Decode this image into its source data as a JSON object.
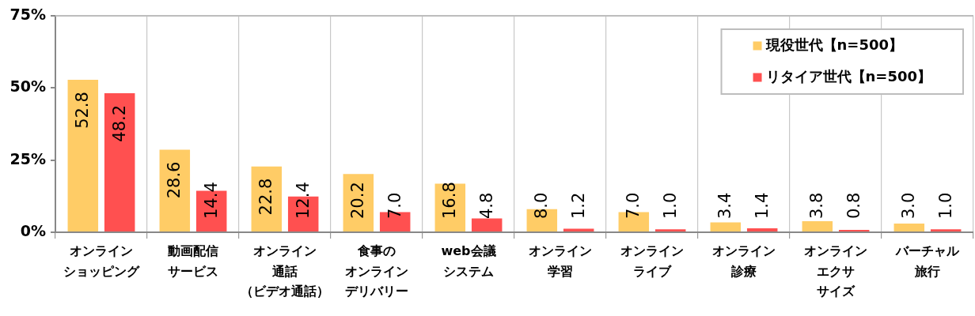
{
  "chart_data": {
    "type": "bar",
    "categories": [
      "オンラインショッピング",
      "動画配信サービス",
      "オンライン通話（ビデオ通話）",
      "食事のオンラインデリバリー",
      "web会議システム",
      "オンライン学習",
      "オンラインライブ",
      "オンライン診療",
      "オンラインエクササイズ",
      "バーチャル旅行"
    ],
    "series": [
      {
        "name": "現役世代【n=500】",
        "color": "#ffcc66",
        "values": [
          52.8,
          28.6,
          22.8,
          20.2,
          16.8,
          8.0,
          7.0,
          3.4,
          3.8,
          3.0
        ],
        "value_labels": [
          "52.8",
          "28.6",
          "22.8",
          "20.2",
          "16.8",
          "8.0",
          "7.0",
          "3.4",
          "3.8",
          "3.0"
        ]
      },
      {
        "name": "リタイア世代【n=500】",
        "color": "#ff5050",
        "values": [
          48.2,
          14.4,
          12.4,
          7.0,
          4.8,
          1.2,
          1.0,
          1.4,
          0.8,
          1.0
        ],
        "value_labels": [
          "48.2",
          "14.4",
          "12.4",
          "7.0",
          "4.8",
          "1.2",
          "1.0",
          "1.4",
          "0.8",
          "1.0"
        ]
      }
    ],
    "ylim": [
      0,
      75
    ],
    "yticks": [
      {
        "value": 0,
        "label": "0%"
      },
      {
        "value": 25,
        "label": "25%"
      },
      {
        "value": 50,
        "label": "50%"
      },
      {
        "value": 75,
        "label": "75%"
      }
    ],
    "grid": "x",
    "legend": "top right"
  }
}
